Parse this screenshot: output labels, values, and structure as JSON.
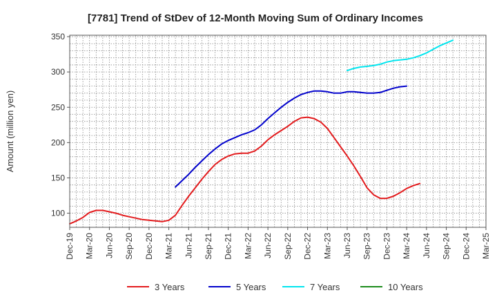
{
  "chart_data": {
    "type": "line",
    "title": "[7781]  Trend of StDev of 12-Month Moving Sum of Ordinary Incomes",
    "xlabel": "",
    "ylabel": "Amount (million yen)",
    "ylim": [
      80,
      352
    ],
    "yticks": [
      100,
      150,
      200,
      250,
      300,
      350
    ],
    "x_tick_labels": [
      "Dec-19",
      "Mar-20",
      "Jun-20",
      "Sep-20",
      "Dec-20",
      "Mar-21",
      "Jun-21",
      "Sep-21",
      "Dec-21",
      "Mar-22",
      "Jun-22",
      "Sep-22",
      "Dec-22",
      "Mar-23",
      "Jun-23",
      "Sep-23",
      "Dec-23",
      "Mar-24",
      "Jun-24",
      "Sep-24",
      "Dec-24",
      "Mar-25"
    ],
    "grid": true,
    "legend_position": "bottom",
    "series": [
      {
        "name": "3 Years",
        "color": "#e31a1c",
        "start_index": 0,
        "values": [
          85,
          89,
          94,
          101,
          104,
          104,
          102,
          100,
          97,
          95,
          93,
          91,
          90,
          89,
          88,
          90,
          97,
          111,
          124,
          136,
          148,
          159,
          169,
          176,
          181,
          184,
          185,
          185,
          188,
          195,
          204,
          211,
          217,
          223,
          230,
          235,
          236,
          234,
          229,
          220,
          207,
          194,
          181,
          167,
          152,
          136,
          126,
          121,
          121,
          124,
          129,
          135,
          139,
          142
        ]
      },
      {
        "name": "5 Years",
        "color": "#0000cc",
        "start_index": 16,
        "values": [
          137,
          146,
          155,
          165,
          174,
          183,
          191,
          198,
          203,
          207,
          211,
          214,
          218,
          225,
          234,
          242,
          250,
          257,
          263,
          268,
          271,
          273,
          273,
          272,
          270,
          270,
          272,
          272,
          271,
          270,
          270,
          271,
          274,
          277,
          279,
          280
        ]
      },
      {
        "name": "7 Years",
        "color": "#00e5ee",
        "start_index": 42,
        "values": [
          302,
          305,
          307,
          308,
          309,
          311,
          314,
          316,
          317,
          318,
          320,
          323,
          327,
          332,
          337,
          341,
          345
        ]
      },
      {
        "name": "10 Years",
        "color": "#1a8a1a",
        "start_index": 0,
        "values": []
      }
    ]
  }
}
